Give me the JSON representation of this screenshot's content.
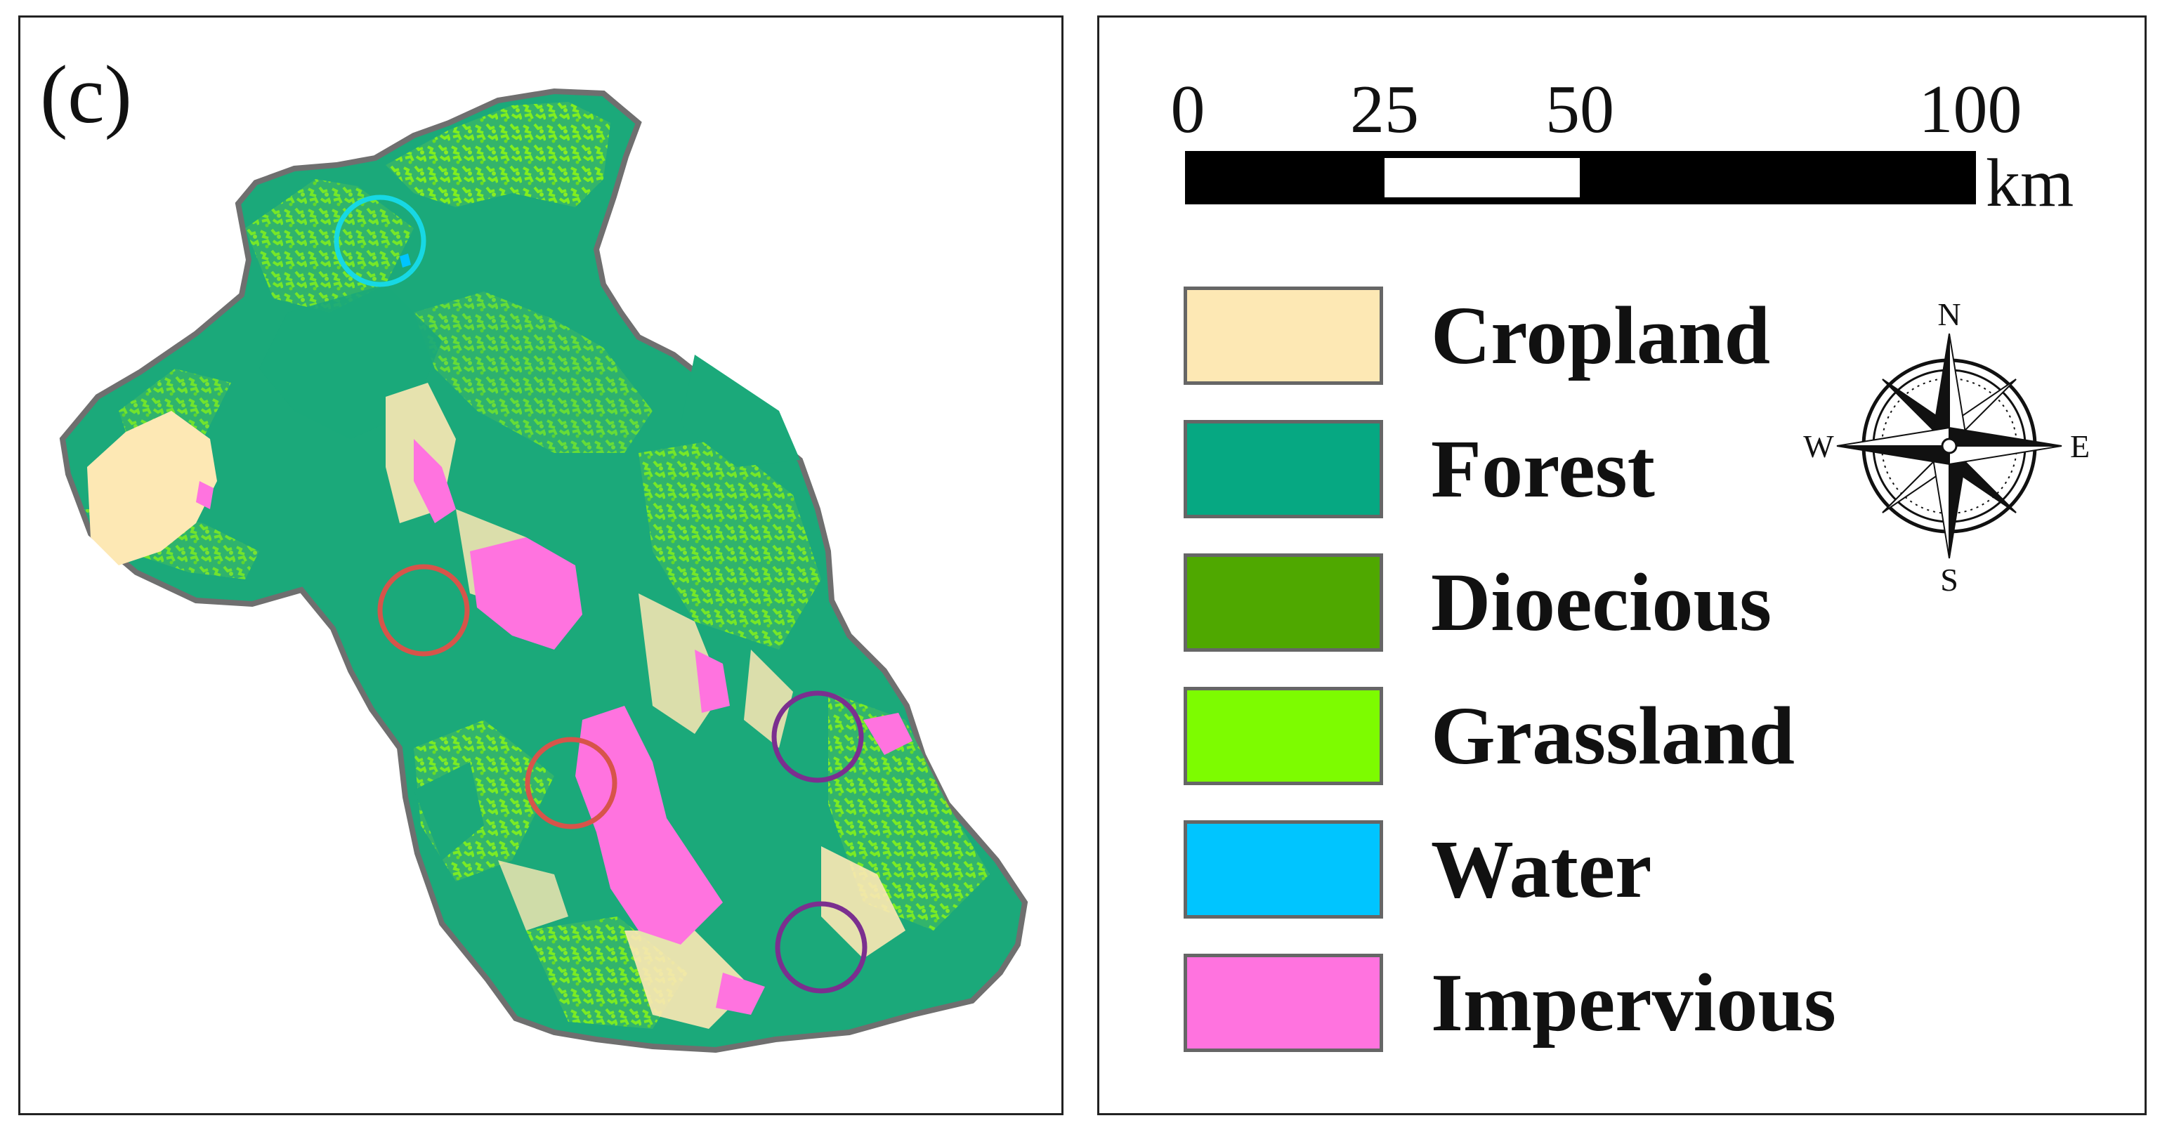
{
  "map": {
    "panel_label": "(c)",
    "highlight_circles": [
      {
        "color": "#17d8e4",
        "meaning": "water"
      },
      {
        "color": "#d7544a",
        "meaning": "impervious"
      },
      {
        "color": "#d7544a",
        "meaning": "impervious"
      },
      {
        "color": "#7b2f8f",
        "meaning": "forest"
      },
      {
        "color": "#7b2f8f",
        "meaning": "forest"
      }
    ]
  },
  "scale_bar": {
    "ticks": [
      "0",
      "25",
      "50",
      "100"
    ],
    "unit": "km"
  },
  "legend": {
    "items": [
      {
        "label": "Cropland",
        "color": "#fde8b4"
      },
      {
        "label": "Forest",
        "color": "#06a882"
      },
      {
        "label": "Dioecious",
        "color": "#4fa800"
      },
      {
        "label": "Grassland",
        "color": "#7dfc00"
      },
      {
        "label": "Water",
        "color": "#00c5ff"
      },
      {
        "label": "Impervious",
        "color": "#ff73df"
      }
    ]
  },
  "compass": {
    "n": "N",
    "s": "S",
    "e": "E",
    "w": "W"
  }
}
